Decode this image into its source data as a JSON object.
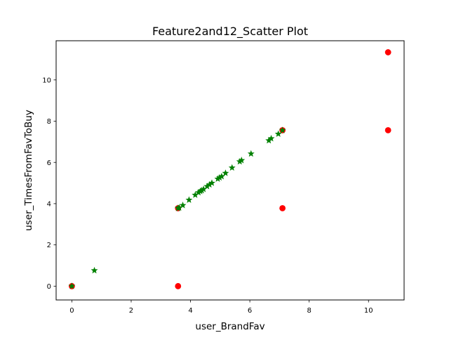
{
  "chart_data": {
    "type": "scatter",
    "title": "Feature2and12_Scatter Plot",
    "xlabel": "user_BrandFav",
    "ylabel": "user_TimesFromFavToBuy",
    "xlim": [
      -0.53,
      11.2
    ],
    "ylim": [
      -0.67,
      11.9
    ],
    "xticks": [
      0,
      2,
      4,
      6,
      8,
      10
    ],
    "yticks": [
      0,
      2,
      4,
      6,
      8,
      10
    ],
    "grid": false,
    "legend": "none",
    "series": [
      {
        "marker": "circle",
        "color": "#ff0000",
        "points": [
          [
            0,
            0
          ],
          [
            3.58,
            0
          ],
          [
            3.58,
            3.78
          ],
          [
            7.1,
            3.78
          ],
          [
            7.1,
            7.56
          ],
          [
            10.66,
            7.56
          ],
          [
            10.66,
            11.34
          ]
        ]
      },
      {
        "marker": "star",
        "color": "#008000",
        "points": [
          [
            0,
            0
          ],
          [
            0.76,
            0.76
          ],
          [
            3.58,
            3.78
          ],
          [
            3.62,
            3.8
          ],
          [
            3.74,
            3.92
          ],
          [
            3.95,
            4.18
          ],
          [
            4.16,
            4.42
          ],
          [
            4.27,
            4.54
          ],
          [
            4.33,
            4.6
          ],
          [
            4.38,
            4.64
          ],
          [
            4.44,
            4.7
          ],
          [
            4.56,
            4.84
          ],
          [
            4.64,
            4.92
          ],
          [
            4.72,
            5.0
          ],
          [
            4.92,
            5.2
          ],
          [
            4.98,
            5.26
          ],
          [
            5.05,
            5.32
          ],
          [
            5.18,
            5.48
          ],
          [
            5.4,
            5.74
          ],
          [
            5.66,
            6.04
          ],
          [
            5.72,
            6.1
          ],
          [
            6.04,
            6.42
          ],
          [
            6.64,
            7.06
          ],
          [
            6.72,
            7.16
          ],
          [
            6.96,
            7.38
          ],
          [
            7.1,
            7.56
          ]
        ]
      }
    ]
  }
}
